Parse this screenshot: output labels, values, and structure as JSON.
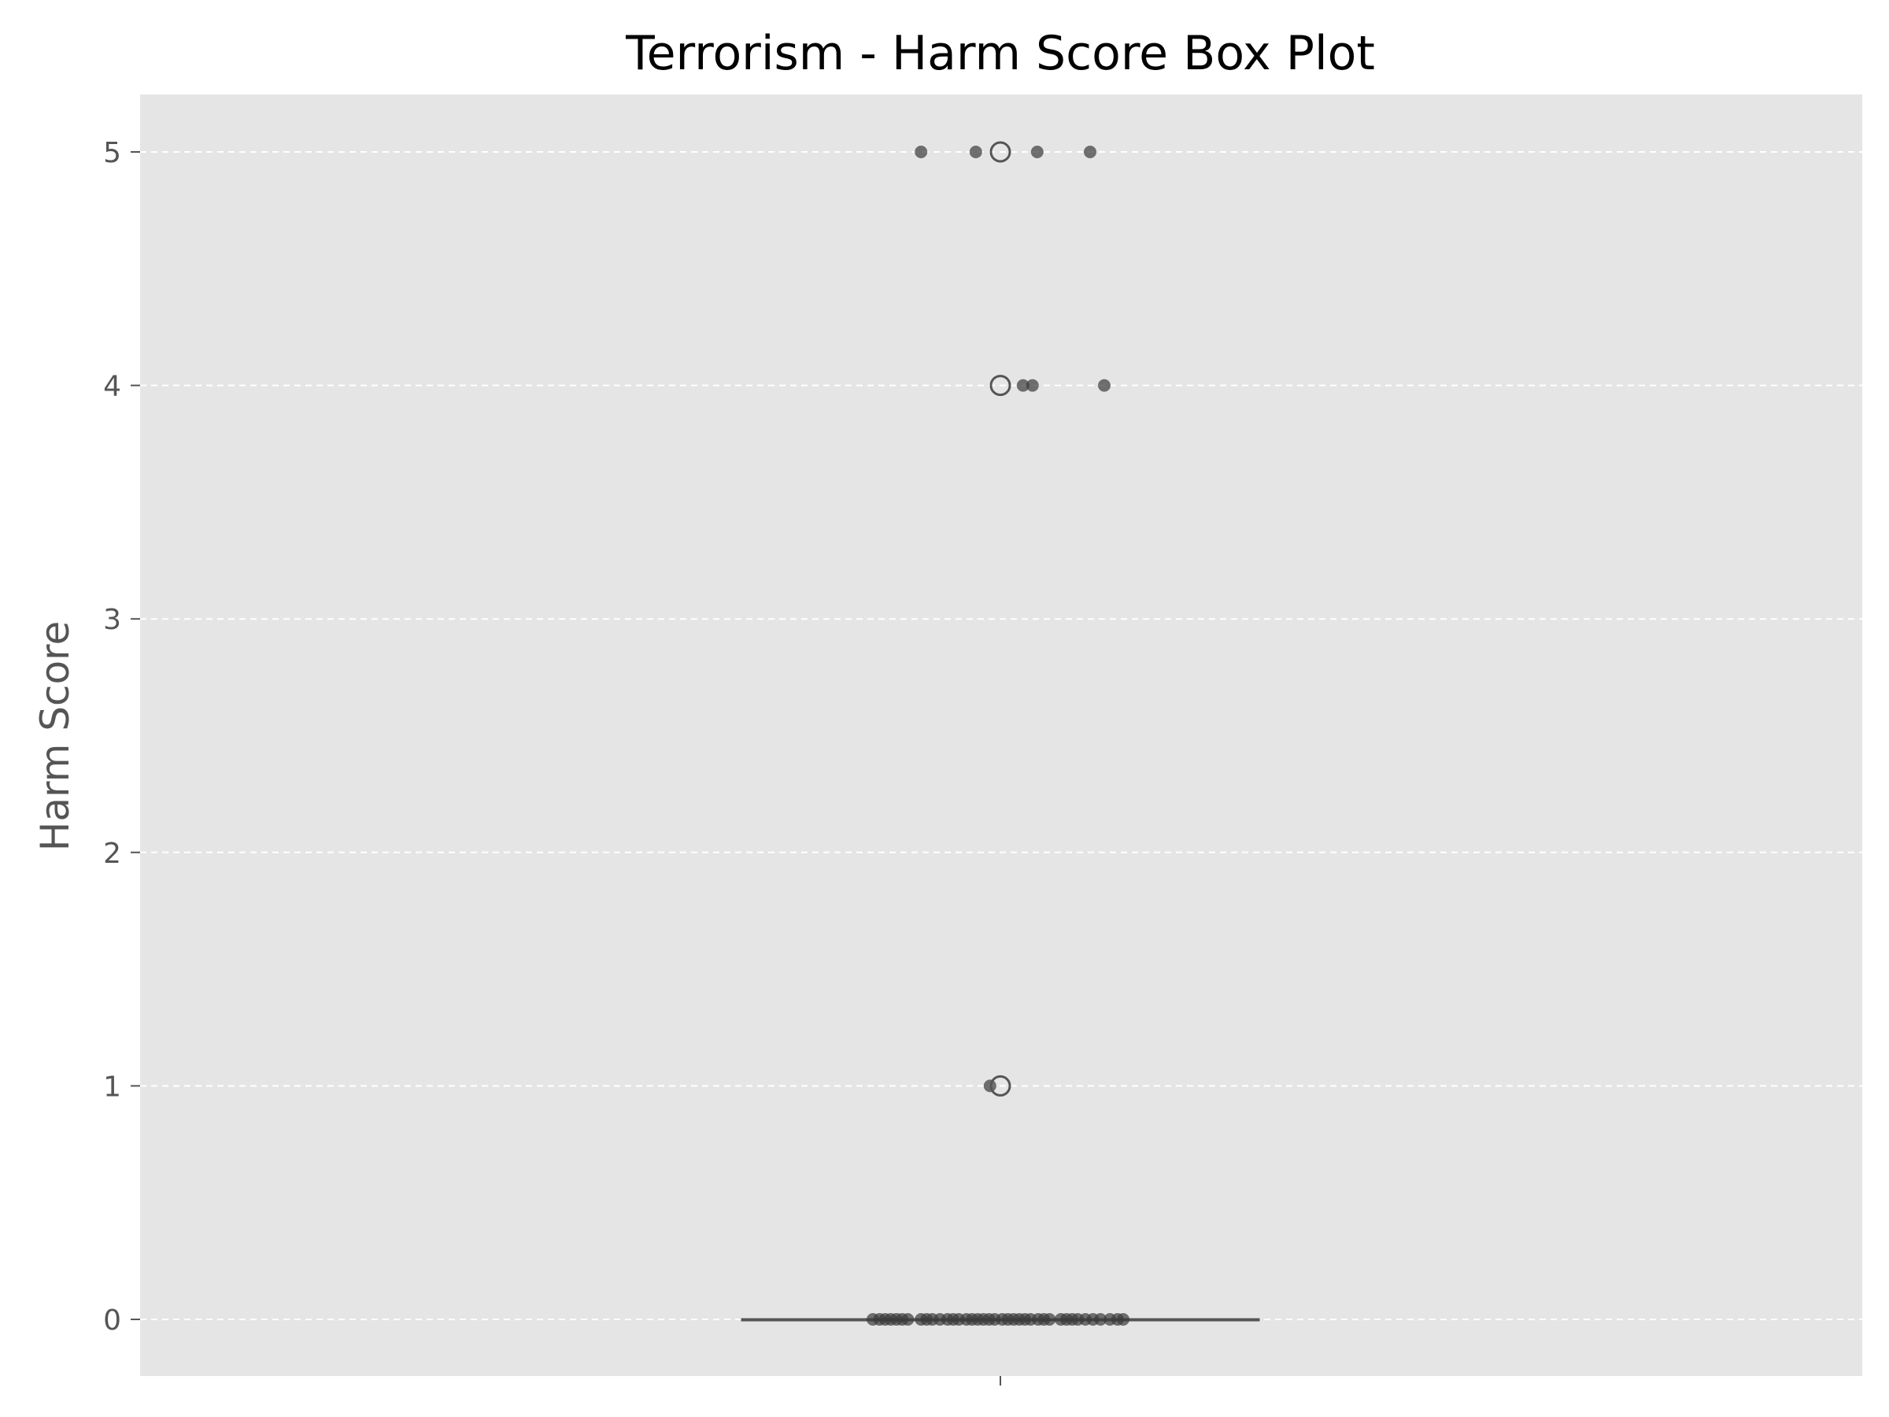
{
  "chart_data": {
    "type": "box",
    "title": "Terrorism - Harm Score Box Plot",
    "xlabel": "",
    "ylabel": "Harm Score",
    "ylim": [
      -0.24,
      5.25
    ],
    "yticks": [
      0,
      1,
      2,
      3,
      4,
      5
    ],
    "grid": true,
    "box": {
      "min": 0,
      "q1": 0,
      "median": 0,
      "q3": 0,
      "max": 0
    },
    "outliers": [
      1,
      4,
      5
    ],
    "points": [
      {
        "jitter": -0.168,
        "y": 5
      },
      {
        "jitter": -0.052,
        "y": 5
      },
      {
        "jitter": 0.078,
        "y": 5
      },
      {
        "jitter": 0.19,
        "y": 5
      },
      {
        "jitter": 0.048,
        "y": 4
      },
      {
        "jitter": 0.068,
        "y": 4
      },
      {
        "jitter": 0.22,
        "y": 4
      },
      {
        "jitter": -0.022,
        "y": 1
      },
      {
        "jitter": -0.27,
        "y": 0
      },
      {
        "jitter": -0.256,
        "y": 0
      },
      {
        "jitter": -0.244,
        "y": 0
      },
      {
        "jitter": -0.232,
        "y": 0
      },
      {
        "jitter": -0.22,
        "y": 0
      },
      {
        "jitter": -0.208,
        "y": 0
      },
      {
        "jitter": -0.196,
        "y": 0
      },
      {
        "jitter": -0.168,
        "y": 0
      },
      {
        "jitter": -0.156,
        "y": 0
      },
      {
        "jitter": -0.144,
        "y": 0
      },
      {
        "jitter": -0.128,
        "y": 0
      },
      {
        "jitter": -0.112,
        "y": 0
      },
      {
        "jitter": -0.1,
        "y": 0
      },
      {
        "jitter": -0.088,
        "y": 0
      },
      {
        "jitter": -0.072,
        "y": 0
      },
      {
        "jitter": -0.06,
        "y": 0
      },
      {
        "jitter": -0.048,
        "y": 0
      },
      {
        "jitter": -0.036,
        "y": 0
      },
      {
        "jitter": -0.024,
        "y": 0
      },
      {
        "jitter": -0.012,
        "y": 0
      },
      {
        "jitter": 0.004,
        "y": 0
      },
      {
        "jitter": 0.016,
        "y": 0
      },
      {
        "jitter": 0.028,
        "y": 0
      },
      {
        "jitter": 0.04,
        "y": 0
      },
      {
        "jitter": 0.052,
        "y": 0
      },
      {
        "jitter": 0.064,
        "y": 0
      },
      {
        "jitter": 0.08,
        "y": 0
      },
      {
        "jitter": 0.092,
        "y": 0
      },
      {
        "jitter": 0.104,
        "y": 0
      },
      {
        "jitter": 0.128,
        "y": 0
      },
      {
        "jitter": 0.14,
        "y": 0
      },
      {
        "jitter": 0.152,
        "y": 0
      },
      {
        "jitter": 0.164,
        "y": 0
      },
      {
        "jitter": 0.18,
        "y": 0
      },
      {
        "jitter": 0.196,
        "y": 0
      },
      {
        "jitter": 0.212,
        "y": 0
      },
      {
        "jitter": 0.232,
        "y": 0
      },
      {
        "jitter": 0.248,
        "y": 0
      },
      {
        "jitter": 0.26,
        "y": 0
      }
    ],
    "colors": {
      "plot_background": "#e5e5e5",
      "grid": "#ffffff",
      "box": "#555555",
      "points": "#3a3a3a",
      "outlier_edge": "#555555"
    }
  }
}
